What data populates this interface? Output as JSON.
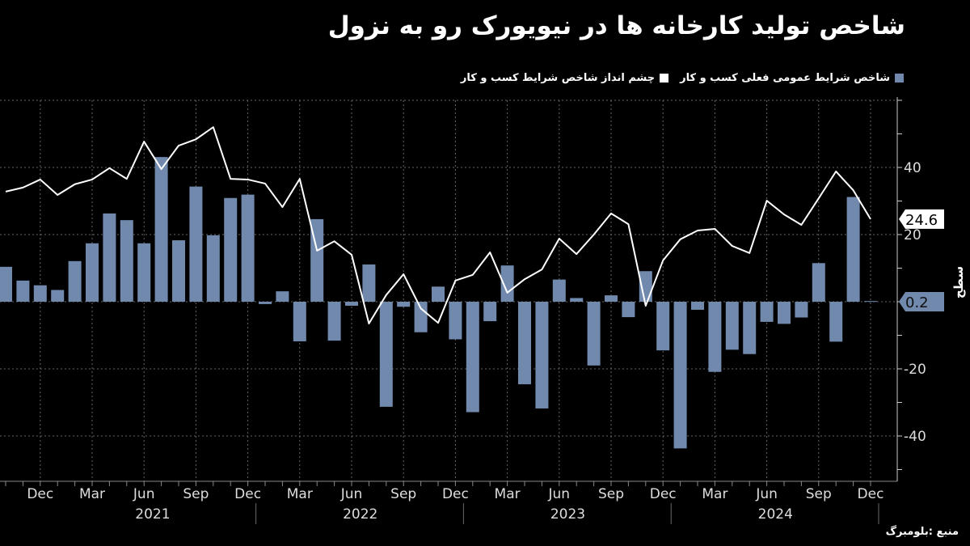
{
  "title": "شاخص تولید کارخانه ها در نیویورک رو به نزول",
  "legend": [
    {
      "label": "شاخص شرایط عمومی فعلی کسب و کار",
      "color": "#7089ad"
    },
    {
      "label": "چشم انداز شاخص شرایط کسب و کار",
      "color": "#ffffff"
    }
  ],
  "source": "منبع :بلومبرگ",
  "chart_data": {
    "type": "bar+line",
    "ylabel": "سطح",
    "ylim": [
      -53,
      60
    ],
    "yticks": [
      -40,
      -20,
      20,
      40
    ],
    "grid": true,
    "legend_position": "top-right",
    "x": [
      "2020-10",
      "2020-11",
      "2020-12",
      "2021-01",
      "2021-02",
      "2021-03",
      "2021-04",
      "2021-05",
      "2021-06",
      "2021-07",
      "2021-08",
      "2021-09",
      "2021-10",
      "2021-11",
      "2021-12",
      "2022-01",
      "2022-02",
      "2022-03",
      "2022-04",
      "2022-05",
      "2022-06",
      "2022-07",
      "2022-08",
      "2022-09",
      "2022-10",
      "2022-11",
      "2022-12",
      "2023-01",
      "2023-02",
      "2023-03",
      "2023-04",
      "2023-05",
      "2023-06",
      "2023-07",
      "2023-08",
      "2023-09",
      "2023-10",
      "2023-11",
      "2023-12",
      "2024-01",
      "2024-02",
      "2024-03",
      "2024-04",
      "2024-05",
      "2024-06",
      "2024-07",
      "2024-08",
      "2024-09",
      "2024-10",
      "2024-11",
      "2024-12"
    ],
    "xtick_labels": [
      "Dec",
      "Mar",
      "Jun",
      "Sep",
      "Dec",
      "Mar",
      "Jun",
      "Sep",
      "Dec",
      "Mar",
      "Jun",
      "Sep",
      "Dec",
      "Mar",
      "Jun",
      "Sep",
      "Dec"
    ],
    "year_labels": [
      "2021",
      "2022",
      "2023",
      "2024"
    ],
    "series": [
      {
        "name": "شاخص شرایط عمومی فعلی کسب و کار",
        "type": "bar",
        "color": "#7089ad",
        "values": [
          10.4,
          6.3,
          4.9,
          3.5,
          12.1,
          17.4,
          26.3,
          24.3,
          17.4,
          43.1,
          18.3,
          34.3,
          19.8,
          30.9,
          31.9,
          -0.7,
          3.1,
          -11.8,
          24.6,
          -11.6,
          -1.2,
          11.1,
          -31.3,
          -1.5,
          -9.1,
          4.5,
          -11.2,
          -32.9,
          -5.8,
          10.8,
          -24.6,
          -31.8,
          6.6,
          1.1,
          -19.0,
          1.9,
          -4.6,
          9.1,
          -14.5,
          -43.7,
          -2.4,
          -20.9,
          -14.3,
          -15.6,
          -6.0,
          -6.6,
          -4.7,
          11.5,
          -11.9,
          31.2,
          0.2
        ]
      },
      {
        "name": "چشم انداز شاخص شرایط کسب و کار",
        "type": "line",
        "color": "#ffffff",
        "values": [
          32.8,
          34.0,
          36.4,
          31.8,
          35.0,
          36.4,
          39.8,
          36.6,
          47.7,
          39.5,
          46.5,
          48.4,
          52.0,
          36.6,
          36.4,
          35.2,
          28.2,
          36.6,
          15.2,
          18.0,
          14.0,
          -6.5,
          2.0,
          8.2,
          -2.0,
          -6.3,
          6.3,
          8.0,
          14.7,
          2.7,
          6.7,
          9.6,
          18.8,
          14.2,
          20.0,
          26.3,
          23.1,
          -1.2,
          12.3,
          18.6,
          21.2,
          21.7,
          16.6,
          14.5,
          30.1,
          26.0,
          22.9,
          30.8,
          38.8,
          33.2,
          24.6
        ]
      }
    ],
    "last_value_labels": [
      "24.6",
      "0.2"
    ]
  }
}
